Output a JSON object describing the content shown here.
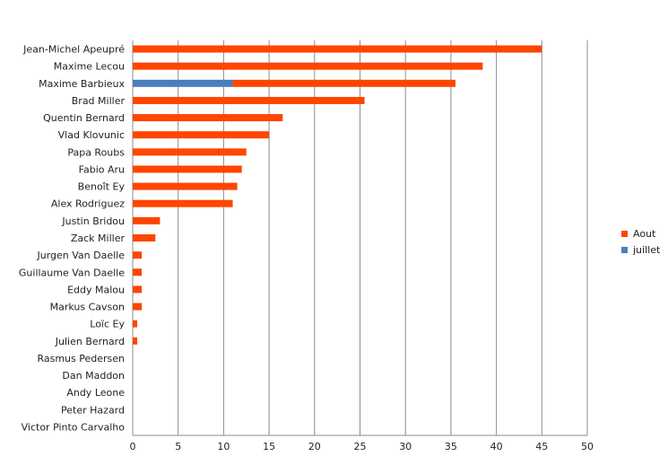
{
  "chart_data": {
    "type": "bar",
    "orientation": "horizontal",
    "stacked": true,
    "categories": [
      "Jean-Michel Apeupré",
      "Maxime Lecou",
      "Maxime Barbieux",
      "Brad Miller",
      "Quentin Bernard",
      "Vlad Klovunic",
      "Papa Roubs",
      "Fabio Aru",
      "Benoît Ey",
      "Alex Rodriguez",
      "Justin Bridou",
      "Zack Miller",
      "Jurgen Van Daelle",
      "Guillaume Van Daelle",
      "Eddy Malou",
      "Markus Cavson",
      "Loïc Ey",
      "Julien Bernard",
      "Rasmus Pedersen",
      "Dan Maddon",
      "Andy Leone",
      "Peter Hazard",
      "Victor Pinto Carvalho"
    ],
    "series": [
      {
        "name": "juillet",
        "color": "#4a7ebb",
        "values": [
          0,
          0,
          11,
          0,
          0,
          0,
          0,
          0,
          0,
          0,
          0,
          0,
          0,
          0,
          0,
          0,
          0,
          0,
          0,
          0,
          0,
          0,
          0
        ]
      },
      {
        "name": "Aout",
        "color": "#ff4500",
        "values": [
          45,
          38.5,
          24.5,
          25.5,
          16.5,
          15,
          12.5,
          12,
          11.5,
          11,
          3,
          2.5,
          1,
          1,
          1,
          1,
          0.5,
          0.5,
          0,
          0,
          0,
          0,
          0
        ]
      }
    ],
    "legend_order": [
      "Aout",
      "juillet"
    ],
    "xlim": [
      0,
      50
    ],
    "xticks": [
      0,
      5,
      10,
      15,
      20,
      25,
      30,
      35,
      40,
      45,
      50
    ],
    "grid": true,
    "legend_position": "right",
    "title": "",
    "xlabel": "",
    "ylabel": ""
  }
}
